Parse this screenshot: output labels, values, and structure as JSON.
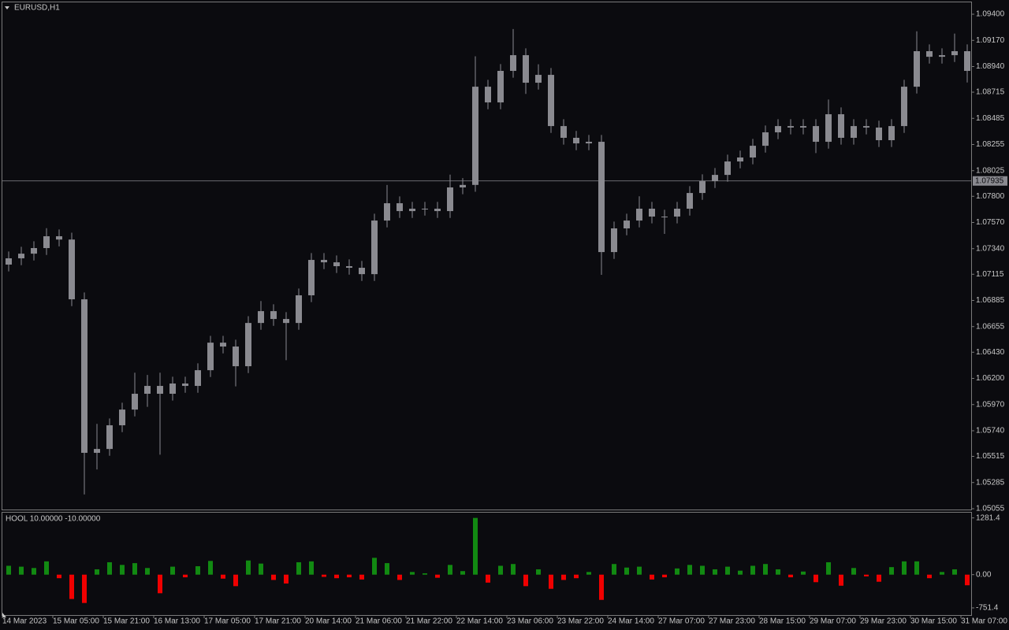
{
  "chart_data": [
    {
      "type": "candlestick",
      "title": "EURUSD,H1",
      "color": "#8a8a90",
      "bid_color": "#8a8a90",
      "ylim": [
        1.05041,
        1.09504
      ],
      "yticks": [
        {
          "value": 1.094,
          "label": "1.09400"
        },
        {
          "value": 1.0917,
          "label": "1.09170"
        },
        {
          "value": 1.0894,
          "label": "1.08940"
        },
        {
          "value": 1.08715,
          "label": "1.08715"
        },
        {
          "value": 1.08485,
          "label": "1.08485"
        },
        {
          "value": 1.08255,
          "label": "1.08255"
        },
        {
          "value": 1.08025,
          "label": "1.08025"
        },
        {
          "value": 1.078,
          "label": "1.07800"
        },
        {
          "value": 1.0757,
          "label": "1.07570"
        },
        {
          "value": 1.0734,
          "label": "1.07340"
        },
        {
          "value": 1.07115,
          "label": "1.07115"
        },
        {
          "value": 1.06885,
          "label": "1.06885"
        },
        {
          "value": 1.06655,
          "label": "1.06655"
        },
        {
          "value": 1.0643,
          "label": "1.06430"
        },
        {
          "value": 1.062,
          "label": "1.06200"
        },
        {
          "value": 1.0597,
          "label": "1.05970"
        },
        {
          "value": 1.0574,
          "label": "1.05740"
        },
        {
          "value": 1.05515,
          "label": "1.05515"
        },
        {
          "value": 1.05285,
          "label": "1.05285"
        },
        {
          "value": 1.05055,
          "label": "1.05055"
        }
      ],
      "bid": 1.07935,
      "open": [
        1.072,
        1.07255,
        1.07296,
        1.07345,
        1.07449,
        1.0742,
        1.06895,
        1.05546,
        1.0558,
        1.05788,
        1.05926,
        1.06065,
        1.06134,
        1.06065,
        1.06155,
        1.06134,
        1.06272,
        1.06514,
        1.0648,
        1.06307,
        1.06687,
        1.06791,
        1.06722,
        1.06687,
        1.0693,
        1.07241,
        1.0722,
        1.07186,
        1.07172,
        1.07116,
        1.07587,
        1.07739,
        1.0767,
        1.07691,
        1.07691,
        1.0767,
        1.07878,
        1.079,
        1.08763,
        1.08625,
        1.08902,
        1.0904,
        1.08798,
        1.08867,
        1.08417,
        1.08314,
        1.08265,
        1.08279,
        1.0731,
        1.07518,
        1.07587,
        1.07691,
        1.07622,
        1.07622,
        1.07691,
        1.07829,
        1.07933,
        1.07988,
        1.08106,
        1.08141,
        1.08244,
        1.08362,
        1.08417,
        1.08404,
        1.08417,
        1.08279,
        1.08521,
        1.08314,
        1.08417,
        1.08404,
        1.08293,
        1.08417,
        1.08763,
        1.09075,
        1.09026,
        1.0904,
        1.09075
      ],
      "high": [
        1.07315,
        1.07356,
        1.07405,
        1.0752,
        1.07509,
        1.0748,
        1.06955,
        1.058,
        1.05848,
        1.05986,
        1.0625,
        1.0623,
        1.0625,
        1.06215,
        1.06215,
        1.06332,
        1.06574,
        1.06574,
        1.0654,
        1.06747,
        1.0688,
        1.06851,
        1.06782,
        1.0699,
        1.07301,
        1.07301,
        1.0728,
        1.07246,
        1.07232,
        1.07647,
        1.079,
        1.07799,
        1.07751,
        1.07751,
        1.07751,
        1.0799,
        1.0796,
        1.0903,
        1.08823,
        1.08962,
        1.0927,
        1.091,
        1.0896,
        1.08927,
        1.08477,
        1.08374,
        1.08339,
        1.08339,
        1.07578,
        1.07647,
        1.078,
        1.07751,
        1.07682,
        1.07751,
        1.07889,
        1.07993,
        1.08048,
        1.08166,
        1.08201,
        1.08304,
        1.08422,
        1.08477,
        1.08477,
        1.08477,
        1.08477,
        1.0865,
        1.08581,
        1.08477,
        1.08477,
        1.08464,
        1.08477,
        1.08823,
        1.0925,
        1.09135,
        1.091,
        1.0923,
        1.09135
      ],
      "low": [
        1.0714,
        1.07195,
        1.07236,
        1.07285,
        1.0736,
        1.06835,
        1.0518,
        1.054,
        1.0552,
        1.05728,
        1.05866,
        1.0595,
        1.0553,
        1.06005,
        1.06074,
        1.06074,
        1.06212,
        1.0642,
        1.0613,
        1.06247,
        1.06627,
        1.06662,
        1.0636,
        1.06627,
        1.0687,
        1.0716,
        1.07126,
        1.07112,
        1.07056,
        1.07056,
        1.07527,
        1.0761,
        1.0761,
        1.07631,
        1.0761,
        1.0761,
        1.07818,
        1.0784,
        1.08565,
        1.08565,
        1.08842,
        1.087,
        1.08738,
        1.08357,
        1.08254,
        1.08205,
        1.08205,
        1.0711,
        1.0725,
        1.07458,
        1.07527,
        1.07562,
        1.0747,
        1.07562,
        1.07631,
        1.07769,
        1.07873,
        1.07928,
        1.08046,
        1.08081,
        1.08184,
        1.08302,
        1.08344,
        1.08344,
        1.0818,
        1.08219,
        1.08254,
        1.08254,
        1.08344,
        1.08233,
        1.08233,
        1.08357,
        1.08703,
        1.08966,
        1.08966,
        1.0898,
        1.088
      ],
      "close": [
        1.07255,
        1.07296,
        1.07345,
        1.07449,
        1.0742,
        1.06895,
        1.05546,
        1.0558,
        1.05788,
        1.05926,
        1.06065,
        1.06134,
        1.06065,
        1.06155,
        1.06134,
        1.06272,
        1.06514,
        1.0648,
        1.06307,
        1.06687,
        1.06791,
        1.06722,
        1.06687,
        1.0693,
        1.07241,
        1.0722,
        1.07186,
        1.07172,
        1.07116,
        1.07587,
        1.07739,
        1.0767,
        1.07691,
        1.07691,
        1.0767,
        1.07878,
        1.079,
        1.08763,
        1.08625,
        1.08902,
        1.0904,
        1.08798,
        1.08867,
        1.08417,
        1.08314,
        1.08265,
        1.08279,
        1.0731,
        1.07518,
        1.07587,
        1.07691,
        1.07622,
        1.07622,
        1.07691,
        1.07829,
        1.07933,
        1.07988,
        1.08106,
        1.08141,
        1.08244,
        1.08362,
        1.08417,
        1.08404,
        1.08417,
        1.08279,
        1.08521,
        1.08314,
        1.08417,
        1.08404,
        1.08293,
        1.08417,
        1.08763,
        1.09075,
        1.09026,
        1.0904,
        1.09075,
        1.08902
      ]
    },
    {
      "type": "bar",
      "title": "HOOL 10.00000 -10.00000",
      "positive_color": "#128a12",
      "negative_color": "#f00000",
      "ylim": [
        -930,
        1400
      ],
      "yticks": [
        1281.4,
        {
          "value": 0,
          "label": "0.00"
        },
        -751.4
      ],
      "values": [
        200,
        180,
        150,
        300,
        -80,
        -550,
        -640,
        120,
        280,
        220,
        260,
        150,
        -420,
        180,
        -60,
        190,
        310,
        -90,
        -260,
        320,
        250,
        -120,
        -200,
        280,
        300,
        -50,
        -80,
        -60,
        -110,
        380,
        260,
        -120,
        60,
        30,
        -70,
        220,
        80,
        1281.4,
        -180,
        200,
        240,
        -260,
        120,
        -320,
        -120,
        -80,
        60,
        -570,
        240,
        160,
        180,
        -110,
        -60,
        140,
        220,
        200,
        120,
        180,
        90,
        200,
        240,
        120,
        -60,
        70,
        -170,
        280,
        -250,
        150,
        -40,
        -160,
        170,
        300,
        300,
        -80,
        60,
        120,
        -240
      ],
      "x_labels": [
        "14 Mar 2023",
        "15 Mar 05:00",
        "15 Mar 21:00",
        "16 Mar 13:00",
        "17 Mar 05:00",
        "17 Mar 21:00",
        "20 Mar 14:00",
        "21 Mar 06:00",
        "21 Mar 22:00",
        "22 Mar 14:00",
        "23 Mar 06:00",
        "23 Mar 22:00",
        "24 Mar 14:00",
        "27 Mar 07:00",
        "27 Mar 23:00",
        "28 Mar 15:00",
        "29 Mar 07:00",
        "29 Mar 23:00",
        "30 Mar 15:00",
        "31 Mar 07:00"
      ]
    }
  ]
}
